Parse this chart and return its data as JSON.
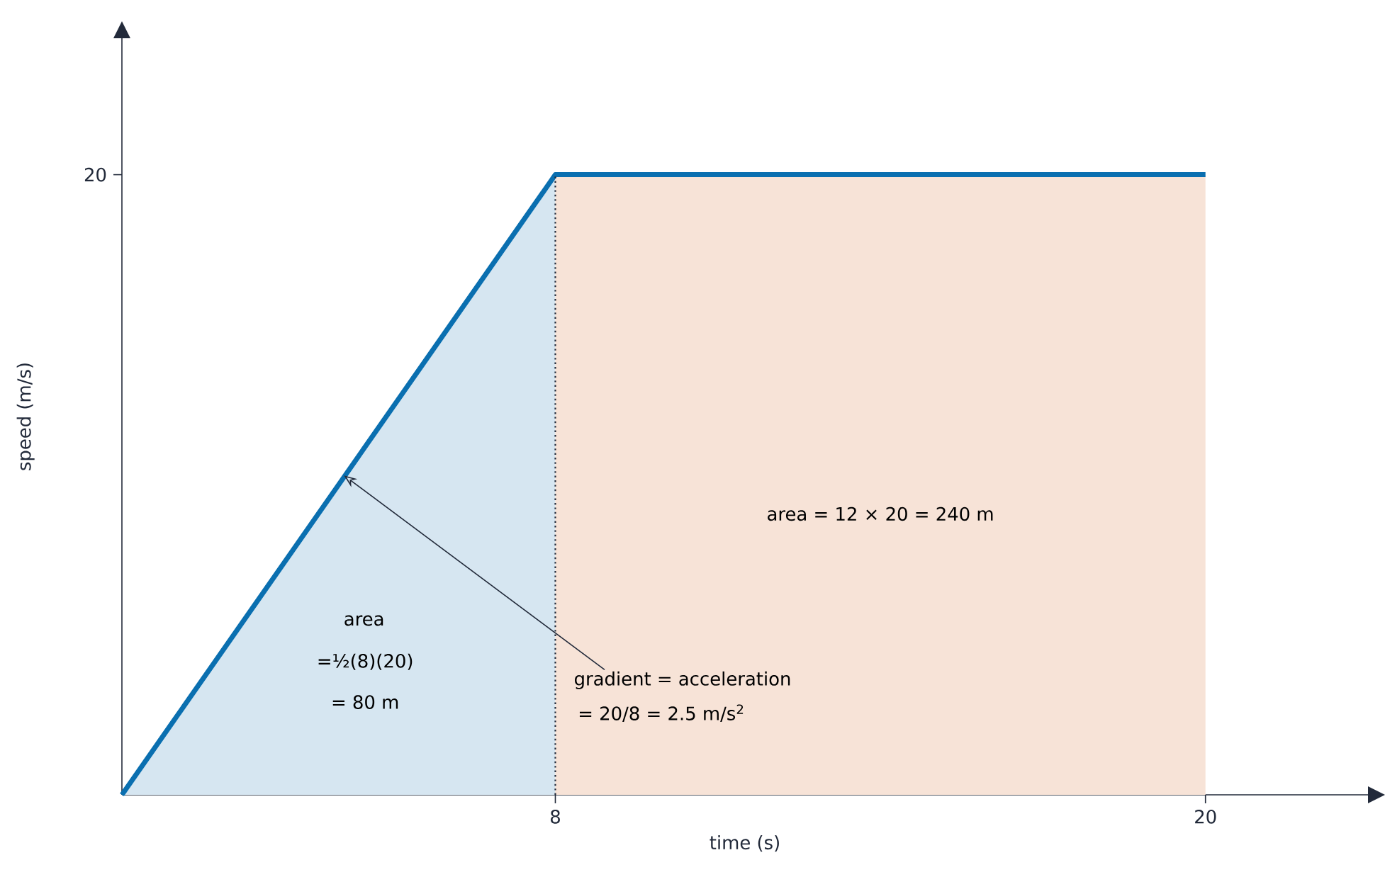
{
  "chart_data": {
    "type": "line",
    "xlabel": "time (s)",
    "ylabel": "speed (m/s)",
    "xlim": [
      0,
      23
    ],
    "ylim": [
      0,
      24.4
    ],
    "xticks": [
      8,
      20
    ],
    "yticks": [
      20
    ],
    "series": [
      {
        "type": "area",
        "color": "#d6e6f1",
        "x": [
          0,
          8
        ],
        "values": [
          0,
          20
        ]
      },
      {
        "type": "area",
        "color": "#f7e3d7",
        "x": [
          8,
          20
        ],
        "values": [
          20,
          20
        ]
      },
      {
        "type": "line",
        "color": "#0a6fb0",
        "line_style": "solid",
        "x": [
          0,
          8,
          20
        ],
        "values": [
          0,
          20,
          20
        ]
      }
    ],
    "ref_lines": [
      {
        "axis": "x",
        "value": 8,
        "line_style": "dotted",
        "color": "#222a3a"
      }
    ],
    "annotations": [
      "area",
      "=½(8)(20)",
      "= 80 m",
      "area  = 12 × 20 = 240 m",
      {
        "text": "gradient = acceleration",
        "x": 4.1,
        "y": 10.3
      },
      "= 20/8 = 2.5 m/s$^{2}$"
    ]
  }
}
